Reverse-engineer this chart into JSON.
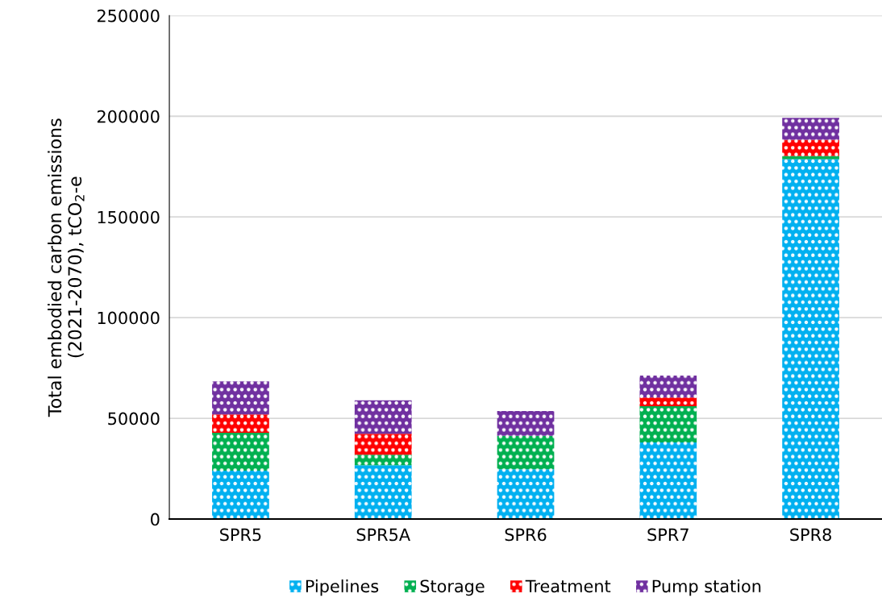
{
  "chart_data": {
    "type": "bar",
    "stacked": true,
    "ylabel": "Total embodied carbon emissions\n(2021-2070), tCO$_{2}$-e",
    "categories": [
      "SPR5",
      "SPR5A",
      "SPR6",
      "SPR7",
      "SPR8"
    ],
    "series": [
      {
        "name": "Pipelines",
        "color": "#00b0f0",
        "values": [
          24000,
          26700,
          24700,
          38000,
          178700
        ]
      },
      {
        "name": "Storage",
        "color": "#00b050",
        "values": [
          18800,
          5200,
          16600,
          18000,
          1600
        ]
      },
      {
        "name": "Treatment",
        "color": "#ff0000",
        "values": [
          9100,
          10400,
          0,
          4300,
          8000
        ]
      },
      {
        "name": "Pump station",
        "color": "#7030a0",
        "values": [
          16400,
          16600,
          12300,
          10900,
          10900
        ]
      }
    ],
    "ylim": [
      0,
      250000
    ],
    "yticks": [
      0,
      50000,
      100000,
      150000,
      200000,
      250000
    ],
    "grid": "y",
    "legend": "bottom"
  }
}
